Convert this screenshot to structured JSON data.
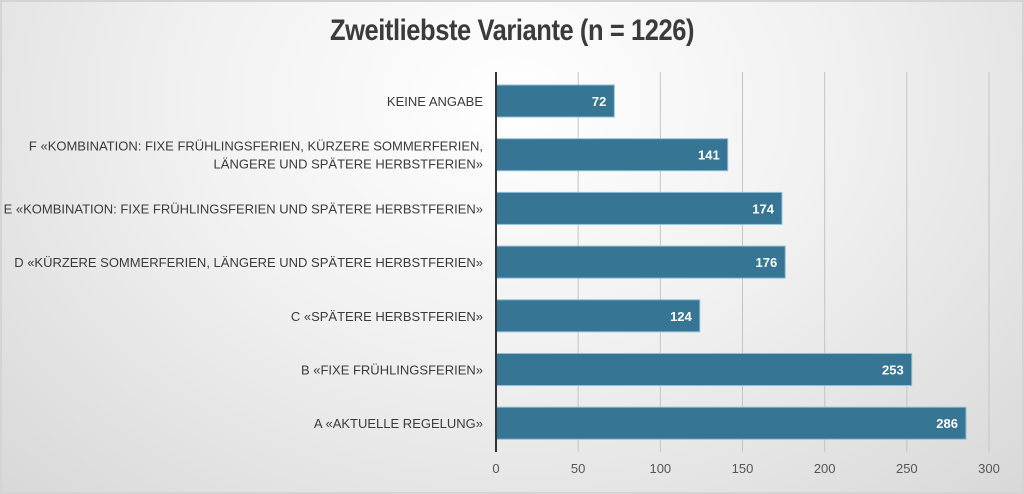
{
  "chart_data": {
    "type": "bar",
    "orientation": "horizontal",
    "title": "Zweitliebste Variante (n = 1226)",
    "categories": [
      [
        "KEINE ANGABE"
      ],
      [
        "F «KOMBINATION: FIXE FRÜHLINGSFERIEN, KÜRZERE SOMMERFERIEN,",
        "LÄNGERE UND SPÄTERE HERBSTFERIEN»"
      ],
      [
        "E «KOMBINATION: FIXE FRÜHLINGSFERIEN UND SPÄTERE HERBSTFERIEN»"
      ],
      [
        "D «KÜRZERE SOMMERFERIEN, LÄNGERE UND SPÄTERE HERBSTFERIEN»"
      ],
      [
        "C «SPÄTERE HERBSTFERIEN»"
      ],
      [
        "B «FIXE FRÜHLINGSFERIEN»"
      ],
      [
        "A «AKTUELLE REGELUNG»"
      ]
    ],
    "values": [
      72,
      141,
      174,
      176,
      124,
      253,
      286
    ],
    "xlim": [
      0,
      300
    ],
    "xticks": [
      "0",
      "50",
      "100",
      "150",
      "200",
      "250",
      "300"
    ],
    "xlabel": "",
    "ylabel": "",
    "grid": true,
    "bar_color": "#367594",
    "data_labels": true
  }
}
